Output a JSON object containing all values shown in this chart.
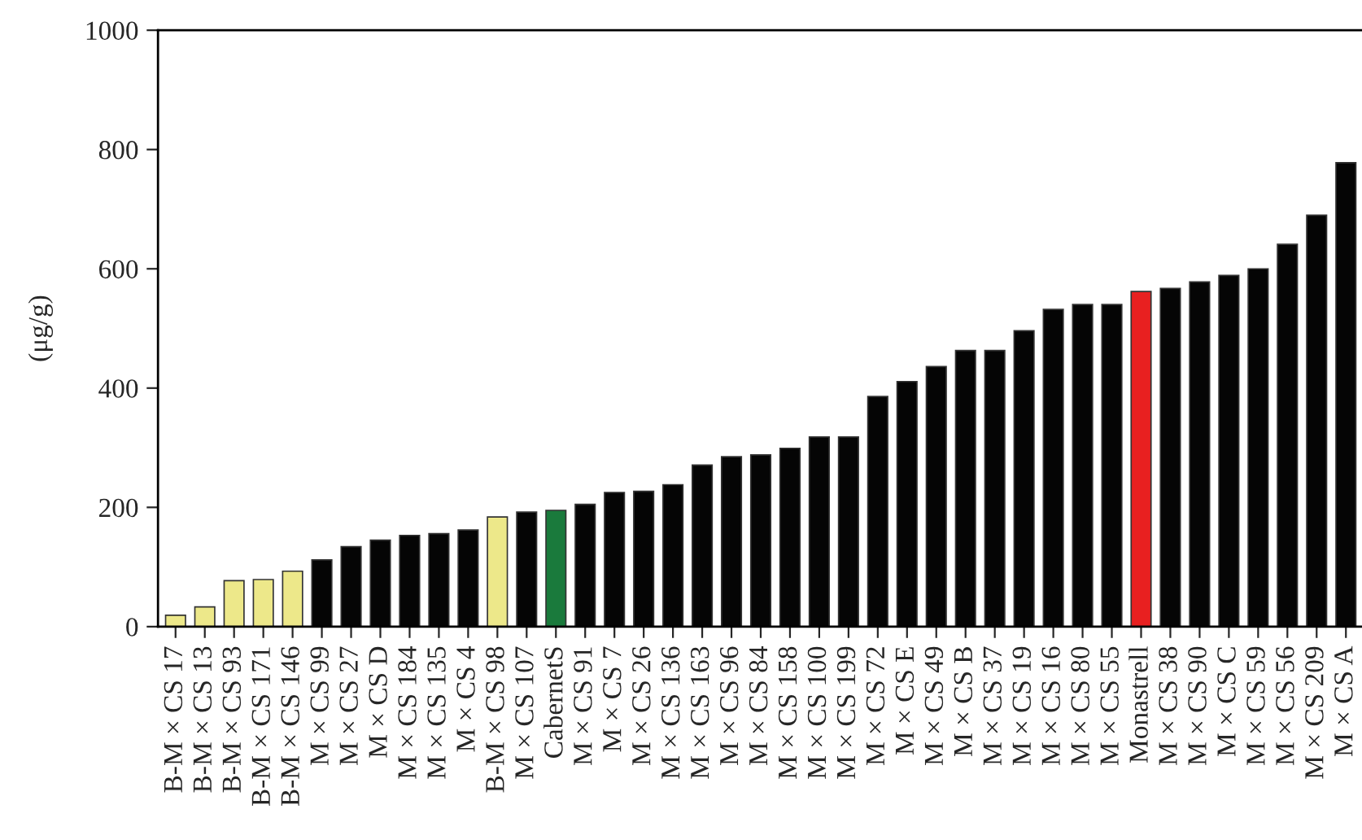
{
  "chart_data": {
    "type": "bar",
    "ylabel": "(μg/g)",
    "categories": [
      "B-M × CS 17",
      "B-M × CS 13",
      "B-M × CS 93",
      "B-M × CS 171",
      "B-M × CS 146",
      "M × CS 99",
      "M × CS 27",
      "M × CS D",
      "M × CS 184",
      "M × CS 135",
      "M × CS 4",
      "B-M × CS 98",
      "M × CS 107",
      "CabernetS",
      "M × CS 91",
      "M × CS 7",
      "M × CS 26",
      "M × CS 136",
      "M × CS 163",
      "M × CS 96",
      "M × CS 84",
      "M × CS 158",
      "M × CS 100",
      "M × CS 199",
      "M × CS 72",
      "M × CS E",
      "M × CS 49",
      "M × CS B",
      "M × CS 37",
      "M × CS 19",
      "M × CS 16",
      "M × CS 80",
      "M × CS 55",
      "Monastrell",
      "M × CS 38",
      "M × CS 90",
      "M × CS C",
      "M × CS 59",
      "M × CS 56",
      "M × CS 209",
      "M × CS A"
    ],
    "values": [
      19,
      33,
      77,
      79,
      93,
      112,
      134,
      145,
      153,
      156,
      162,
      184,
      192,
      195,
      205,
      225,
      227,
      238,
      271,
      285,
      288,
      299,
      318,
      318,
      386,
      411,
      436,
      463,
      463,
      496,
      532,
      540,
      540,
      562,
      567,
      578,
      589,
      600,
      641,
      690,
      778
    ],
    "colors": [
      "#ede88a",
      "#ede88a",
      "#ede88a",
      "#ede88a",
      "#ede88a",
      "#050505",
      "#050505",
      "#050505",
      "#050505",
      "#050505",
      "#050505",
      "#ede88a",
      "#050505",
      "#1a7a3c",
      "#050505",
      "#050505",
      "#050505",
      "#050505",
      "#050505",
      "#050505",
      "#050505",
      "#050505",
      "#050505",
      "#050505",
      "#050505",
      "#050505",
      "#050505",
      "#050505",
      "#050505",
      "#050505",
      "#050505",
      "#050505",
      "#050505",
      "#e82020",
      "#050505",
      "#050505",
      "#050505",
      "#050505",
      "#050505",
      "#050505",
      "#050505"
    ],
    "ylim": [
      0,
      1000
    ],
    "yticks": [
      0,
      200,
      400,
      600,
      800,
      1000
    ],
    "grid": false,
    "legend": false
  }
}
